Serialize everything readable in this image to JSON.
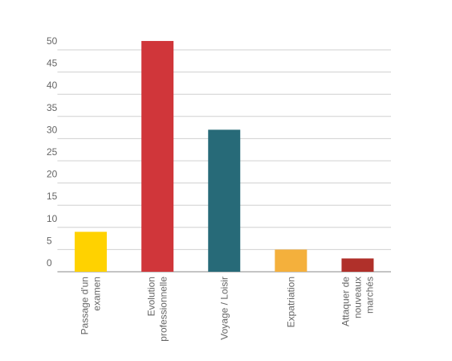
{
  "chart_data": {
    "type": "bar",
    "categories": [
      [
        "Passage d'un",
        "examen"
      ],
      [
        "Evolution",
        "professionnelle"
      ],
      [
        "Voyage / Loisir"
      ],
      [
        "Expatriation"
      ],
      [
        "Attaquer de",
        "nouveaux",
        "marchés"
      ]
    ],
    "values": [
      9,
      52,
      32,
      5,
      3
    ],
    "colors": [
      "#ffd200",
      "#d0363a",
      "#276a78",
      "#f4b03c",
      "#b0302a"
    ],
    "ylim": [
      0,
      50
    ],
    "yticks": [
      0,
      5,
      10,
      15,
      20,
      25,
      30,
      35,
      40,
      45,
      50
    ],
    "grid": true
  }
}
